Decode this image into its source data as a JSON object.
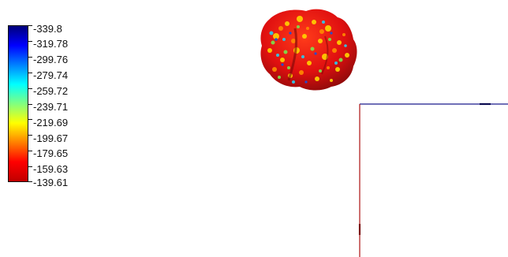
{
  "colorbar": {
    "labels": [
      "-339.8",
      "-319.78",
      "-299.76",
      "-279.74",
      "-259.72",
      "-239.71",
      "-219.69",
      "-199.67",
      "-179.65",
      "-159.63",
      "-139.61"
    ],
    "gradient_stops": [
      "#00007a",
      "#0000ff",
      "#0080ff",
      "#00ffff",
      "#80ff80",
      "#ffff00",
      "#ff8000",
      "#ff0000",
      "#c00000"
    ]
  },
  "viewport": {
    "background": "#ffffff",
    "surface_icon": "molecular-surface-icon",
    "axis_x_color": "#1a1a8c",
    "axis_y_color": "#b22222"
  }
}
